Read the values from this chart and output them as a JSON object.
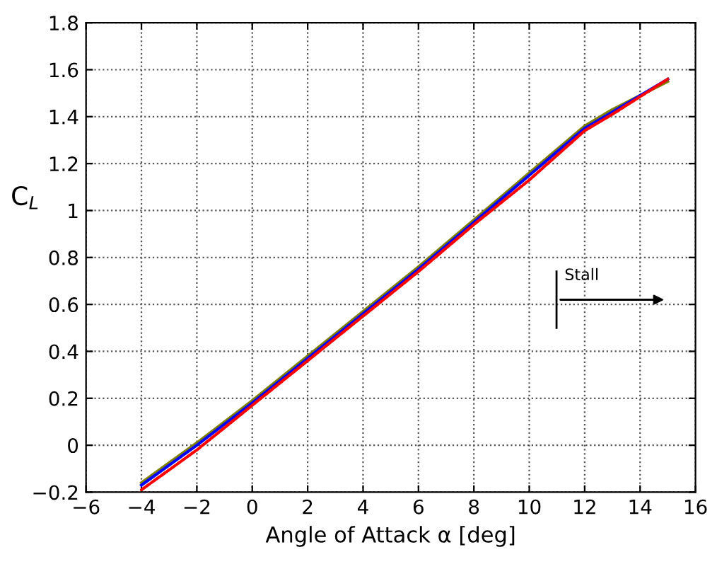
{
  "chart_data": {
    "type": "line",
    "xlabel": "Angle of Attack α [deg]",
    "ylabel": "C$_{L}$",
    "x": [
      -4,
      -2,
      0,
      2,
      4,
      6,
      8,
      10,
      12,
      13,
      15
    ],
    "series": [
      {
        "color": "#ff0000",
        "line_style": "dashed",
        "values": [
          -0.19,
          -0.02,
          0.17,
          0.36,
          0.55,
          0.74,
          0.94,
          1.13,
          1.34,
          1.41,
          1.56
        ]
      },
      {
        "color": "#808000",
        "values": [
          -0.16,
          0.01,
          0.19,
          0.38,
          0.57,
          0.76,
          0.96,
          1.16,
          1.36,
          1.43,
          1.55
        ]
      },
      {
        "color": "#0000ff",
        "values": [
          -0.17,
          0.0,
          0.18,
          0.37,
          0.56,
          0.75,
          0.95,
          1.15,
          1.35,
          1.42,
          1.56
        ]
      }
    ],
    "annotations": [
      "Stall"
    ],
    "xlim": [
      -6,
      16
    ],
    "xticks": [
      -6,
      -4,
      -2,
      0,
      2,
      4,
      6,
      8,
      10,
      12,
      14,
      16
    ],
    "ylim": [
      -0.2,
      1.8
    ],
    "yticks": [
      -0.2,
      0,
      0.2,
      0.4,
      0.6,
      0.8,
      1,
      1.2,
      1.4,
      1.6,
      1.8
    ],
    "grid": true,
    "marker": "none"
  }
}
